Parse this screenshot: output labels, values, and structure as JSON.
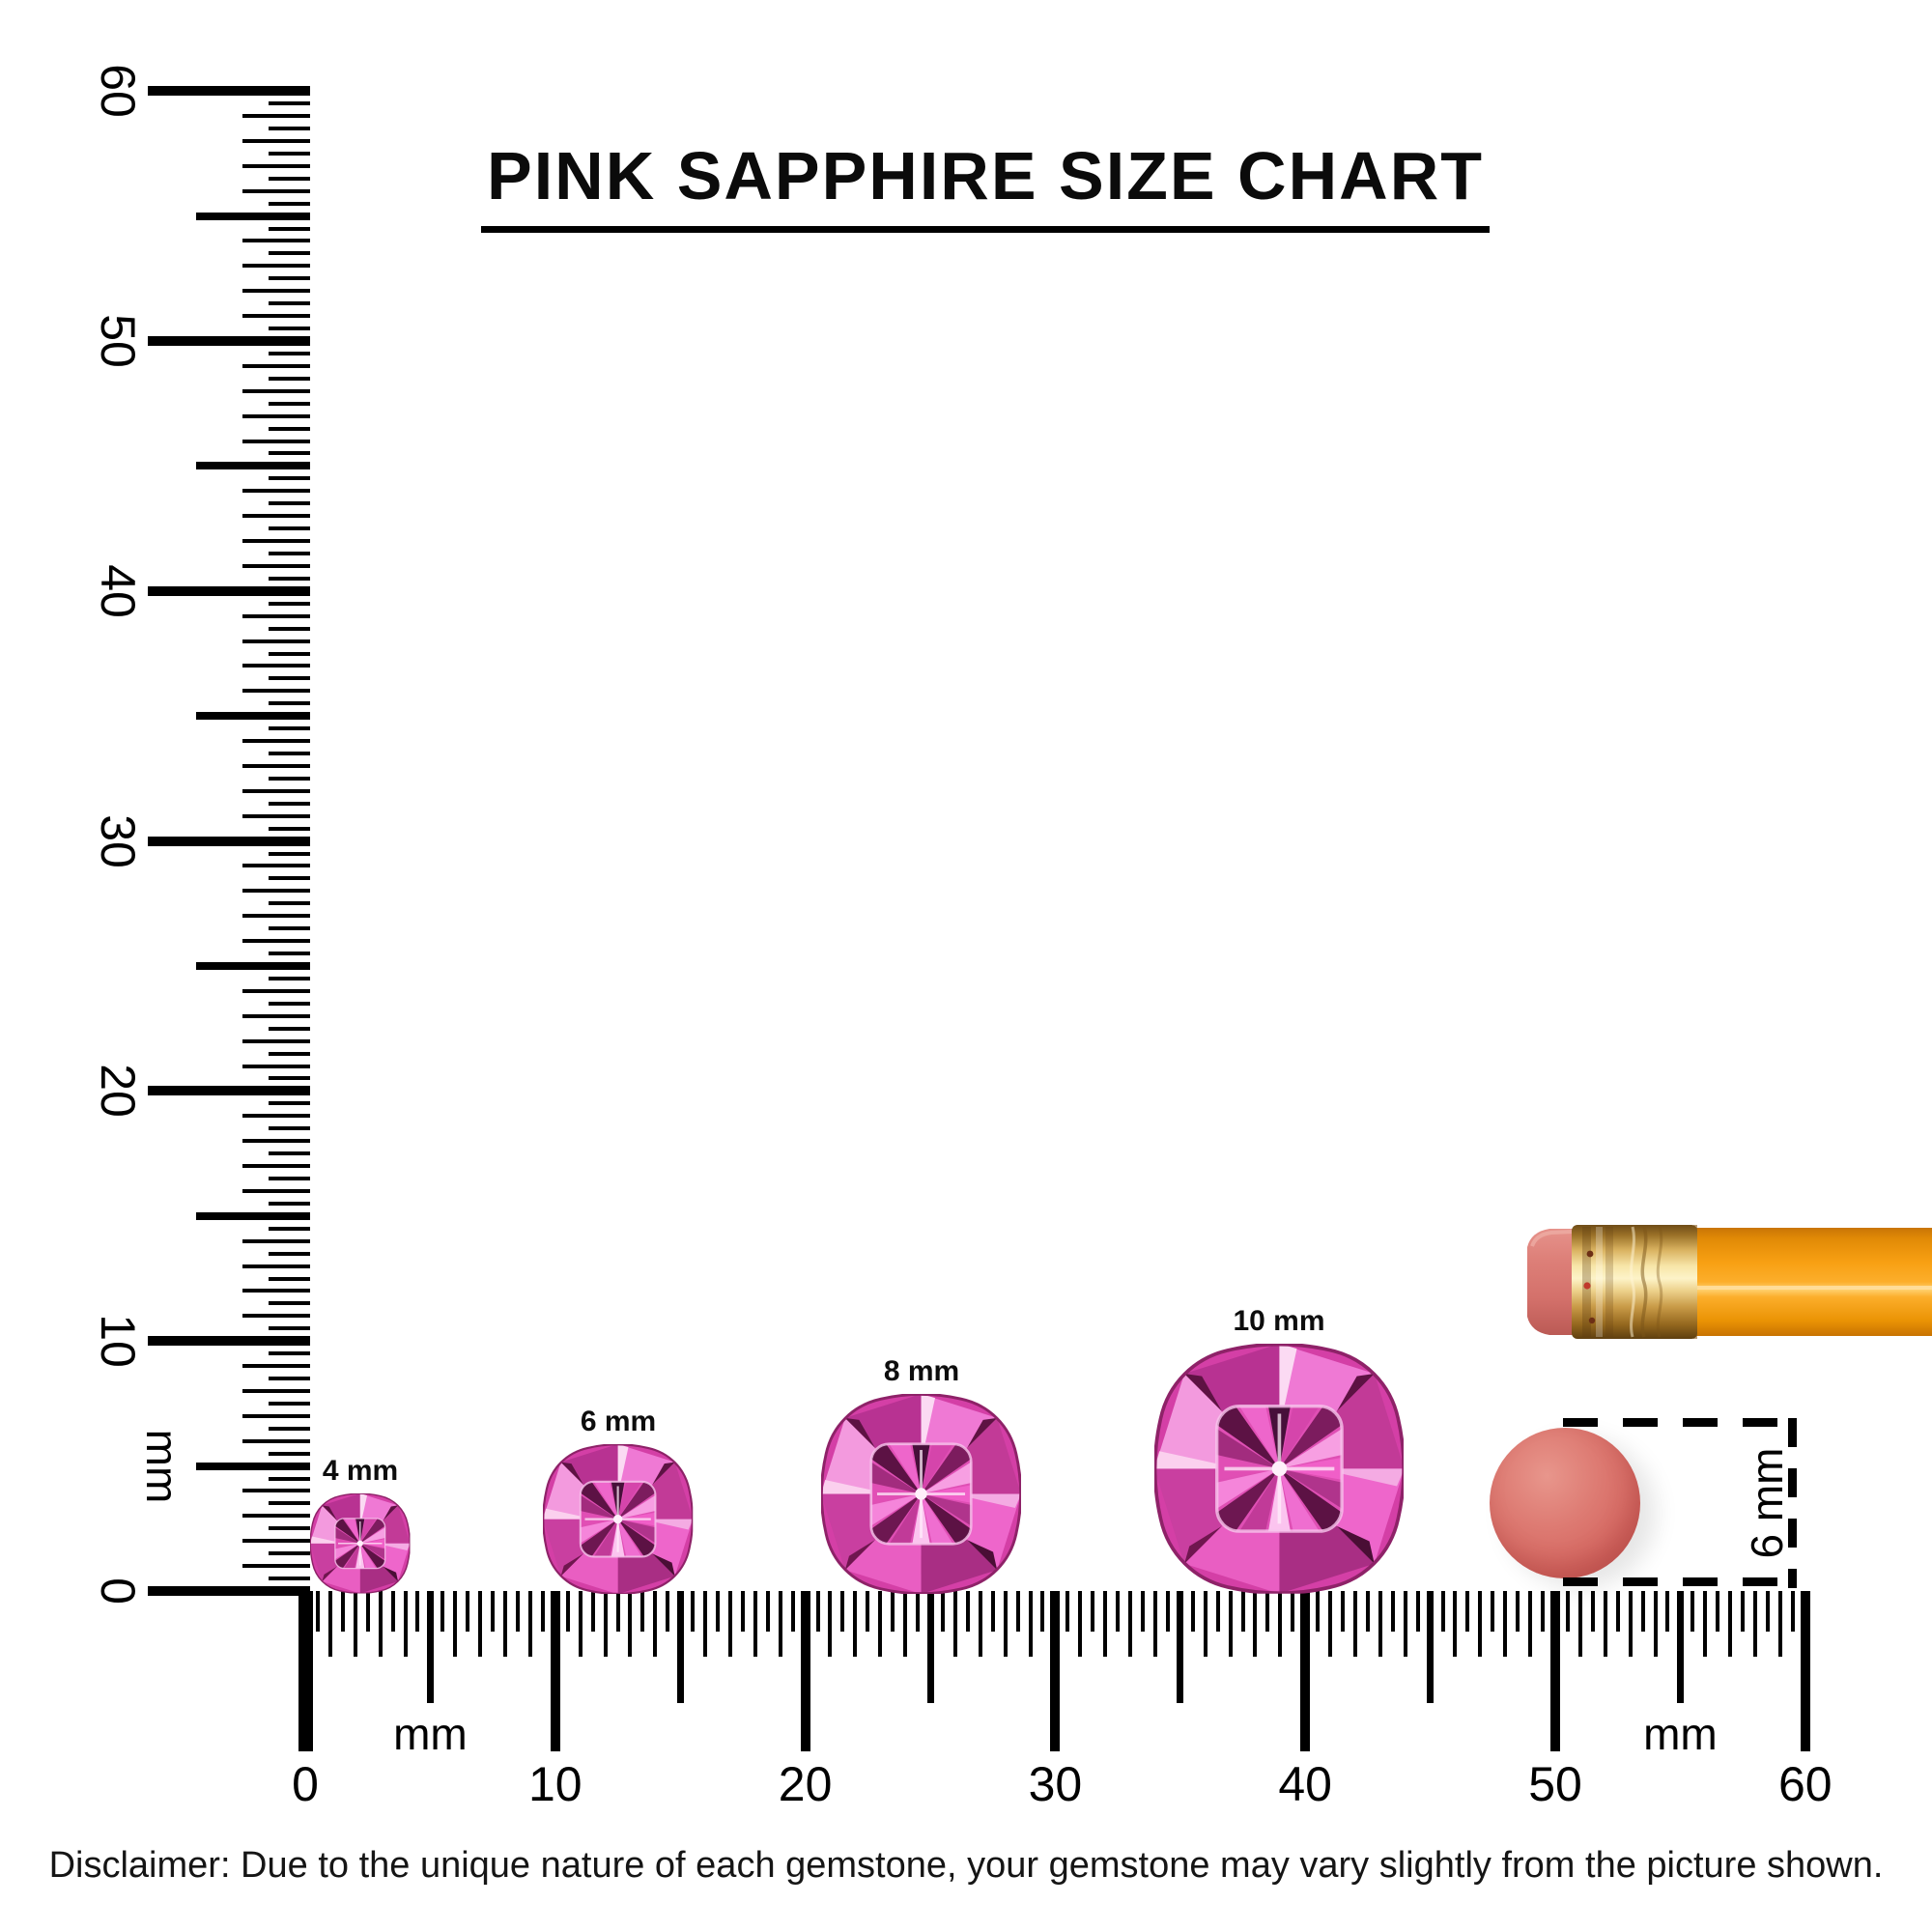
{
  "title": "PINK SAPPHIRE SIZE CHART",
  "disclaimer": "Disclaimer: Due to the unique nature of each gemstone, your gemstone may vary slightly from the picture shown.",
  "rulers": {
    "unit": "mm",
    "vertical": {
      "min_mm": 0,
      "max_mm": 60,
      "tick_step_mm": 0.5,
      "number_labels": [
        "0",
        "10",
        "20",
        "30",
        "40",
        "50",
        "60"
      ],
      "unit_label": "mm",
      "unit_label_at_mm": [
        5
      ]
    },
    "horizontal": {
      "min_mm": 0,
      "max_mm": 60,
      "tick_step_mm": 0.5,
      "number_labels": [
        "0",
        "10",
        "20",
        "30",
        "40",
        "50",
        "60"
      ],
      "unit_label": "mm",
      "unit_label_at_mm": [
        5,
        55
      ]
    }
  },
  "gems": [
    {
      "label": "4 mm",
      "size_mm": 4
    },
    {
      "label": "6 mm",
      "size_mm": 6
    },
    {
      "label": "8 mm",
      "size_mm": 8
    },
    {
      "label": "10 mm",
      "size_mm": 10
    }
  ],
  "eraser_reference": {
    "label": "6 mm",
    "diameter_mm": 6
  },
  "objects": {
    "pencil": "pencil-eraser-end",
    "coral_dot": "round-eraser-tip-6mm"
  },
  "colors": {
    "gem_pink": "#e14fb5",
    "gem_dark": "#5c1244",
    "gem_light": "#f9aee6",
    "pencil_orange": "#f8a013",
    "ferrule_gold": "#d9b260",
    "eraser_pink": "#d4716b",
    "coral_dot": "#d4655f",
    "ink": "#111111"
  }
}
